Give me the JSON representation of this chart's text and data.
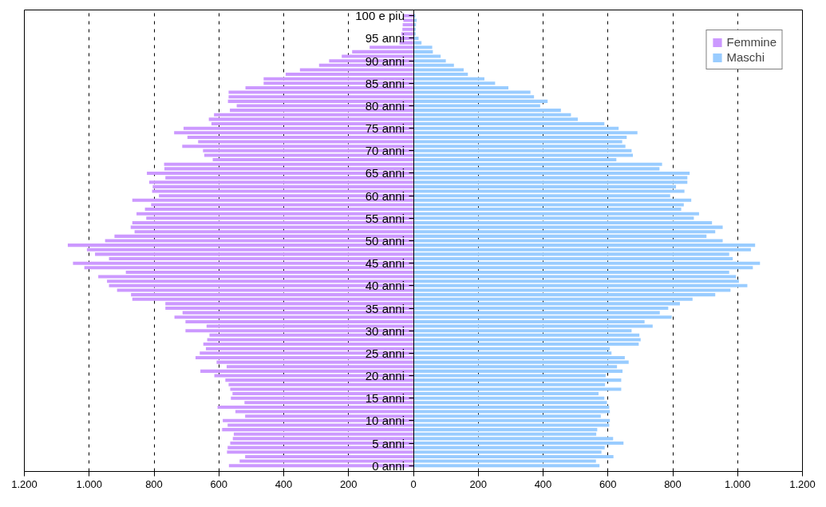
{
  "chart_data": {
    "type": "bar",
    "orientation": "horizontal",
    "categories": [
      "100 e più",
      null,
      null,
      null,
      null,
      "95 anni",
      null,
      null,
      null,
      null,
      "90 anni",
      null,
      null,
      null,
      null,
      "85 anni",
      null,
      null,
      null,
      null,
      "80 anni",
      null,
      null,
      null,
      null,
      "75 anni",
      null,
      null,
      null,
      null,
      "70 anni",
      null,
      null,
      null,
      null,
      "65 anni",
      null,
      null,
      null,
      null,
      "60 anni",
      null,
      null,
      null,
      null,
      "55 anni",
      null,
      null,
      null,
      null,
      "50 anni",
      null,
      null,
      null,
      null,
      "45 anni",
      null,
      null,
      null,
      null,
      "40 anni",
      null,
      null,
      null,
      null,
      "35 anni",
      null,
      null,
      null,
      null,
      "30 anni",
      null,
      null,
      null,
      null,
      "25 anni",
      null,
      null,
      null,
      null,
      "20 anni",
      null,
      null,
      null,
      null,
      "15 anni",
      null,
      null,
      null,
      null,
      "10 anni",
      null,
      null,
      null,
      null,
      "5 anni",
      null,
      null,
      null,
      null,
      "0 anni"
    ],
    "series": [
      {
        "name": "Femmine",
        "color": "#cc99ff",
        "values": [
          -29,
          -31,
          -33,
          -34,
          -37,
          -41,
          -43,
          -135,
          -189,
          -221,
          -260,
          -291,
          -350,
          -394,
          -462,
          -462,
          -518,
          -570,
          -570,
          -572,
          -545,
          -566,
          -615,
          -631,
          -623,
          -709,
          -738,
          -697,
          -664,
          -713,
          -649,
          -645,
          -619,
          -769,
          -768,
          -822,
          -765,
          -815,
          -804,
          -806,
          -785,
          -867,
          -809,
          -828,
          -854,
          -824,
          -867,
          -872,
          -860,
          -922,
          -951,
          -1066,
          -1007,
          -982,
          -939,
          -1050,
          -1015,
          -887,
          -972,
          -945,
          -939,
          -914,
          -871,
          -867,
          -765,
          -765,
          -712,
          -737,
          -703,
          -638,
          -703,
          -629,
          -636,
          -648,
          -640,
          -659,
          -672,
          -607,
          -576,
          -657,
          -614,
          -580,
          -570,
          -565,
          -558,
          -563,
          -521,
          -604,
          -549,
          -519,
          -588,
          -573,
          -590,
          -554,
          -557,
          -565,
          -573,
          -575,
          -519,
          -536,
          -569
        ]
      },
      {
        "name": "Maschi",
        "color": "#99ccff",
        "values": [
          6,
          10,
          8,
          7,
          7,
          16,
          25,
          58,
          60,
          84,
          100,
          125,
          155,
          168,
          219,
          252,
          293,
          361,
          372,
          414,
          391,
          455,
          486,
          507,
          589,
          633,
          691,
          658,
          644,
          654,
          673,
          677,
          626,
          767,
          759,
          852,
          845,
          845,
          810,
          836,
          792,
          857,
          834,
          826,
          881,
          865,
          921,
          954,
          931,
          904,
          954,
          1054,
          1041,
          974,
          985,
          1069,
          1047,
          974,
          995,
          1004,
          1030,
          978,
          931,
          861,
          822,
          786,
          760,
          797,
          713,
          738,
          673,
          697,
          701,
          695,
          606,
          611,
          652,
          664,
          628,
          645,
          593,
          641,
          591,
          641,
          571,
          589,
          597,
          604,
          606,
          578,
          606,
          604,
          567,
          564,
          616,
          648,
          590,
          580,
          617,
          563,
          574
        ]
      }
    ],
    "xlim": [
      -1200,
      1200
    ],
    "xticks": [
      {
        "value": -1200,
        "label": "1.200"
      },
      {
        "value": -1000,
        "label": "1.000"
      },
      {
        "value": -800,
        "label": "800"
      },
      {
        "value": -600,
        "label": "600"
      },
      {
        "value": -400,
        "label": "400"
      },
      {
        "value": -200,
        "label": "200"
      },
      0,
      200,
      400,
      600,
      800,
      {
        "value": 1000,
        "label": "1.000"
      },
      {
        "value": 1200,
        "label": "1.200"
      }
    ],
    "stacked": true,
    "grid": "x",
    "legend": "top right"
  }
}
